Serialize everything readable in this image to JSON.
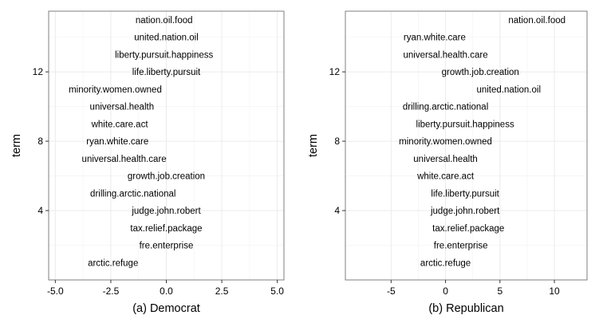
{
  "chart_data": [
    {
      "type": "scatter",
      "title": "",
      "xlabel": "(a) Democrat",
      "ylabel": "term",
      "xlim": [
        -5.3,
        5.3
      ],
      "ylim": [
        0,
        15.5
      ],
      "x_ticks": [
        "-5.0",
        "-2.5",
        "0.0",
        "2.5",
        "5.0"
      ],
      "x_tick_values": [
        -5.0,
        -2.5,
        0.0,
        2.5,
        5.0
      ],
      "y_ticks": [
        "4",
        "8",
        "12"
      ],
      "y_tick_values": [
        4,
        8,
        12
      ],
      "grid": true,
      "points": [
        {
          "label": "nation.oil.food",
          "x": -0.1,
          "y": 15
        },
        {
          "label": "united.nation.oil",
          "x": 0.0,
          "y": 14
        },
        {
          "label": "liberty.pursuit.happiness",
          "x": -0.1,
          "y": 13
        },
        {
          "label": "life.liberty.pursuit",
          "x": 0.0,
          "y": 12
        },
        {
          "label": "minority.women.owned",
          "x": -2.3,
          "y": 11
        },
        {
          "label": "universal.health",
          "x": -2.0,
          "y": 10
        },
        {
          "label": "white.care.act",
          "x": -2.1,
          "y": 9
        },
        {
          "label": "ryan.white.care",
          "x": -2.2,
          "y": 8
        },
        {
          "label": "universal.health.care",
          "x": -1.9,
          "y": 7
        },
        {
          "label": "growth.job.creation",
          "x": 0.0,
          "y": 6
        },
        {
          "label": "drilling.arctic.national",
          "x": -1.5,
          "y": 5
        },
        {
          "label": "judge.john.robert",
          "x": 0.0,
          "y": 4
        },
        {
          "label": "tax.relief.package",
          "x": 0.0,
          "y": 3
        },
        {
          "label": "fre.enterprise",
          "x": 0.0,
          "y": 2
        },
        {
          "label": "arctic.refuge",
          "x": -2.4,
          "y": 1
        }
      ]
    },
    {
      "type": "scatter",
      "title": "",
      "xlabel": "(b) Republican",
      "ylabel": "term",
      "xlim": [
        -9.2,
        13
      ],
      "ylim": [
        0,
        15.5
      ],
      "x_ticks": [
        "-5",
        "0",
        "5",
        "10"
      ],
      "x_tick_values": [
        -5,
        0,
        5,
        10
      ],
      "y_ticks": [
        "4",
        "8",
        "12"
      ],
      "y_tick_values": [
        4,
        8,
        12
      ],
      "grid": true,
      "points": [
        {
          "label": "nation.oil.food",
          "x": 8.4,
          "y": 15
        },
        {
          "label": "ryan.white.care",
          "x": -1.0,
          "y": 14
        },
        {
          "label": "universal.health.care",
          "x": 0.0,
          "y": 13
        },
        {
          "label": "growth.job.creation",
          "x": 3.2,
          "y": 12
        },
        {
          "label": "united.nation.oil",
          "x": 5.8,
          "y": 11
        },
        {
          "label": "drilling.arctic.national",
          "x": 0.0,
          "y": 10
        },
        {
          "label": "liberty.pursuit.happiness",
          "x": 1.8,
          "y": 9
        },
        {
          "label": "minority.women.owned",
          "x": 0.0,
          "y": 8
        },
        {
          "label": "universal.health",
          "x": 0.0,
          "y": 7
        },
        {
          "label": "white.care.act",
          "x": 0.0,
          "y": 6
        },
        {
          "label": "life.liberty.pursuit",
          "x": 1.8,
          "y": 5
        },
        {
          "label": "judge.john.robert",
          "x": 1.8,
          "y": 4
        },
        {
          "label": "tax.relief.package",
          "x": 2.1,
          "y": 3
        },
        {
          "label": "fre.enterprise",
          "x": 1.4,
          "y": 2
        },
        {
          "label": "arctic.refuge",
          "x": 0.0,
          "y": 1
        }
      ]
    }
  ]
}
